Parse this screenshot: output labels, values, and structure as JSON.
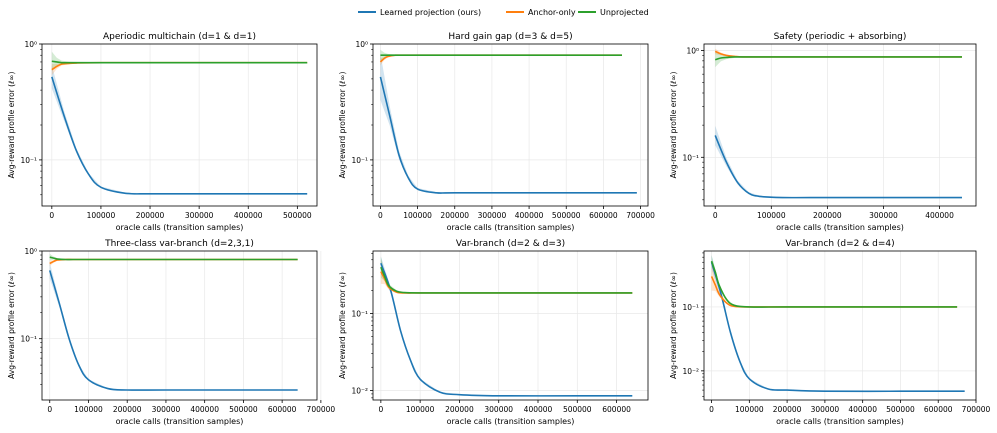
{
  "legend": {
    "placement": "top-center",
    "entries": [
      {
        "name": "Learned projection (ours)",
        "color": "#1f77b4"
      },
      {
        "name": "Anchor-only",
        "color": "#ff7f0e"
      },
      {
        "name": "Unprojected",
        "color": "#2ca02c"
      }
    ]
  },
  "chart_data": [
    {
      "type": "line",
      "title": "Aperiodic multichain (d=1 & d=1)",
      "xlabel": "oracle calls (transition samples)",
      "ylabel": "Avg-reward profile error (ℓ∞)",
      "yscale": "log",
      "xlim": [
        -20000,
        540000
      ],
      "ylim": [
        0.04,
        1.0
      ],
      "xticks": [
        0,
        100000,
        200000,
        300000,
        400000,
        500000
      ],
      "xtick_labels": [
        "0",
        "100000",
        "200000",
        "300000",
        "400000",
        "500000"
      ],
      "yticks": [
        1.0,
        0.1
      ],
      "ytick_labels": [
        "10⁰",
        "10⁻¹"
      ],
      "grid": true,
      "series": [
        {
          "name": "Learned projection (ours)",
          "color": "#1f77b4",
          "x": [
            0,
            25000,
            50000,
            75000,
            100000,
            150000,
            200000,
            300000,
            400000,
            520000
          ],
          "y": [
            0.52,
            0.24,
            0.12,
            0.075,
            0.058,
            0.0515,
            0.051,
            0.051,
            0.051,
            0.051
          ],
          "band": 0.22
        },
        {
          "name": "Anchor-only",
          "color": "#ff7f0e",
          "x": [
            0,
            10000,
            20000,
            35000,
            50000,
            100000,
            200000,
            300000,
            400000,
            520000
          ],
          "y": [
            0.6,
            0.64,
            0.67,
            0.68,
            0.685,
            0.69,
            0.69,
            0.69,
            0.69,
            0.69
          ],
          "band": 0.1
        },
        {
          "name": "Unprojected",
          "color": "#2ca02c",
          "x": [
            0,
            10000,
            20000,
            35000,
            50000,
            100000,
            200000,
            300000,
            400000,
            520000
          ],
          "y": [
            0.71,
            0.7,
            0.69,
            0.69,
            0.69,
            0.69,
            0.69,
            0.69,
            0.69,
            0.69
          ],
          "band": 0.18
        }
      ]
    },
    {
      "type": "line",
      "title": "Hard gain gap (d=3 & d=5)",
      "xlabel": "oracle calls (transition samples)",
      "ylabel": "Avg-reward profile error (ℓ∞)",
      "yscale": "log",
      "xlim": [
        -20000,
        720000
      ],
      "ylim": [
        0.04,
        1.0
      ],
      "xticks": [
        0,
        100000,
        200000,
        300000,
        400000,
        500000,
        600000,
        700000
      ],
      "xtick_labels": [
        "0",
        "100000",
        "200000",
        "300000",
        "400000",
        "500000",
        "600000",
        "700000"
      ],
      "yticks": [
        1.0,
        0.1
      ],
      "ytick_labels": [
        "10⁰",
        "10⁻¹"
      ],
      "grid": true,
      "series": [
        {
          "name": "Learned projection (ours)",
          "color": "#1f77b4",
          "x": [
            0,
            25000,
            50000,
            75000,
            100000,
            150000,
            200000,
            400000,
            600000,
            690000
          ],
          "y": [
            0.52,
            0.24,
            0.11,
            0.07,
            0.056,
            0.052,
            0.052,
            0.052,
            0.052,
            0.052
          ],
          "band": 0.45
        },
        {
          "name": "Anchor-only",
          "color": "#ff7f0e",
          "x": [
            0,
            10000,
            20000,
            40000,
            60000,
            100000,
            200000,
            400000,
            600000,
            650000
          ],
          "y": [
            0.7,
            0.75,
            0.78,
            0.8,
            0.8,
            0.8,
            0.8,
            0.8,
            0.8,
            0.8
          ],
          "band": 0.06
        },
        {
          "name": "Unprojected",
          "color": "#2ca02c",
          "x": [
            0,
            10000,
            20000,
            40000,
            60000,
            100000,
            200000,
            400000,
            600000,
            650000
          ],
          "y": [
            0.8,
            0.8,
            0.8,
            0.8,
            0.8,
            0.8,
            0.8,
            0.8,
            0.8,
            0.8
          ],
          "band": 0.1
        }
      ]
    },
    {
      "type": "line",
      "title": "Safety (periodic + absorbing)",
      "xlabel": "oracle calls (transition samples)",
      "ylabel": "Avg-reward profile error (ℓ∞)",
      "yscale": "log",
      "xlim": [
        -20000,
        465000
      ],
      "ylim": [
        0.035,
        1.15
      ],
      "xticks": [
        0,
        100000,
        200000,
        300000,
        400000
      ],
      "xtick_labels": [
        "0",
        "100000",
        "200000",
        "300000",
        "400000"
      ],
      "yticks": [
        1.0,
        0.1
      ],
      "ytick_labels": [
        "10⁰",
        "10⁻¹"
      ],
      "grid": true,
      "series": [
        {
          "name": "Learned projection (ours)",
          "color": "#1f77b4",
          "x": [
            0,
            20000,
            40000,
            60000,
            80000,
            120000,
            200000,
            300000,
            400000,
            440000
          ],
          "y": [
            0.16,
            0.09,
            0.058,
            0.046,
            0.043,
            0.042,
            0.042,
            0.042,
            0.042,
            0.042
          ],
          "band": 0.2
        },
        {
          "name": "Anchor-only",
          "color": "#ff7f0e",
          "x": [
            0,
            10000,
            20000,
            35000,
            50000,
            100000,
            200000,
            300000,
            400000,
            440000
          ],
          "y": [
            0.98,
            0.93,
            0.9,
            0.88,
            0.87,
            0.87,
            0.87,
            0.87,
            0.87,
            0.87
          ],
          "band": 0.05
        },
        {
          "name": "Unprojected",
          "color": "#2ca02c",
          "x": [
            0,
            10000,
            20000,
            35000,
            50000,
            100000,
            200000,
            300000,
            400000,
            440000
          ],
          "y": [
            0.82,
            0.85,
            0.86,
            0.87,
            0.87,
            0.87,
            0.87,
            0.87,
            0.87,
            0.87
          ],
          "band": 0.15
        }
      ]
    },
    {
      "type": "line",
      "title": "Three-class var-branch (d=2,3,1)",
      "xlabel": "oracle calls (transition samples)",
      "ylabel": "Avg-reward profile error (ℓ∞)",
      "yscale": "log",
      "xlim": [
        -20000,
        690000
      ],
      "ylim": [
        0.02,
        1.0
      ],
      "xticks": [
        0,
        100000,
        200000,
        300000,
        400000,
        500000,
        600000,
        700000
      ],
      "xtick_labels": [
        "0",
        "100000",
        "200000",
        "300000",
        "400000",
        "500000",
        "600000",
        "700000"
      ],
      "yticks": [
        1.0,
        0.1
      ],
      "ytick_labels": [
        "10⁰",
        "10⁻¹"
      ],
      "grid": true,
      "series": [
        {
          "name": "Learned projection (ours)",
          "color": "#1f77b4",
          "x": [
            0,
            25000,
            50000,
            75000,
            100000,
            150000,
            200000,
            300000,
            500000,
            640000
          ],
          "y": [
            0.6,
            0.25,
            0.1,
            0.05,
            0.034,
            0.027,
            0.026,
            0.026,
            0.026,
            0.026
          ],
          "band": 0.2
        },
        {
          "name": "Anchor-only",
          "color": "#ff7f0e",
          "x": [
            0,
            10000,
            20000,
            40000,
            60000,
            100000,
            200000,
            400000,
            600000,
            640000
          ],
          "y": [
            0.72,
            0.76,
            0.79,
            0.8,
            0.8,
            0.8,
            0.8,
            0.8,
            0.8,
            0.8
          ],
          "band": 0.06
        },
        {
          "name": "Unprojected",
          "color": "#2ca02c",
          "x": [
            0,
            10000,
            20000,
            40000,
            60000,
            100000,
            200000,
            400000,
            600000,
            640000
          ],
          "y": [
            0.85,
            0.83,
            0.81,
            0.8,
            0.8,
            0.8,
            0.8,
            0.8,
            0.8,
            0.8
          ],
          "band": 0.08
        }
      ]
    },
    {
      "type": "line",
      "title": "Var-branch (d=2 & d=3)",
      "xlabel": "oracle calls (transition samples)",
      "ylabel": "Avg-reward profile error (ℓ∞)",
      "yscale": "log",
      "xlim": [
        -20000,
        680000
      ],
      "ylim": [
        0.0075,
        0.65
      ],
      "xticks": [
        0,
        100000,
        200000,
        300000,
        400000,
        500000,
        600000
      ],
      "xtick_labels": [
        "0",
        "100000",
        "200000",
        "300000",
        "400000",
        "500000",
        "600000"
      ],
      "yticks": [
        0.1,
        0.01
      ],
      "ytick_labels": [
        "10⁻¹",
        "10⁻²"
      ],
      "grid": true,
      "series": [
        {
          "name": "Learned projection (ours)",
          "color": "#1f77b4",
          "x": [
            0,
            25000,
            50000,
            75000,
            100000,
            150000,
            200000,
            300000,
            500000,
            640000
          ],
          "y": [
            0.45,
            0.2,
            0.06,
            0.025,
            0.014,
            0.0095,
            0.0088,
            0.0085,
            0.0085,
            0.0085
          ],
          "band": 0.2
        },
        {
          "name": "Anchor-only",
          "color": "#ff7f0e",
          "x": [
            0,
            10000,
            20000,
            40000,
            60000,
            100000,
            200000,
            400000,
            600000,
            640000
          ],
          "y": [
            0.35,
            0.28,
            0.22,
            0.19,
            0.185,
            0.185,
            0.185,
            0.185,
            0.185,
            0.185
          ],
          "band": 0.35
        },
        {
          "name": "Unprojected",
          "color": "#2ca02c",
          "x": [
            0,
            10000,
            20000,
            40000,
            60000,
            100000,
            200000,
            400000,
            600000,
            640000
          ],
          "y": [
            0.4,
            0.3,
            0.23,
            0.195,
            0.187,
            0.185,
            0.185,
            0.185,
            0.185,
            0.185
          ],
          "band": 0.3
        }
      ]
    },
    {
      "type": "line",
      "title": "Var-branch (d=2 & d=4)",
      "xlabel": "oracle calls (transition samples)",
      "ylabel": "Avg-reward profile error (ℓ∞)",
      "yscale": "log",
      "xlim": [
        -20000,
        700000
      ],
      "ylim": [
        0.0035,
        0.75
      ],
      "xticks": [
        0,
        100000,
        200000,
        300000,
        400000,
        500000,
        600000,
        700000
      ],
      "xtick_labels": [
        "0",
        "100000",
        "200000",
        "300000",
        "400000",
        "500000",
        "600000",
        "700000"
      ],
      "yticks": [
        0.1,
        0.01
      ],
      "ytick_labels": [
        "10⁻¹",
        "10⁻²"
      ],
      "grid": true,
      "series": [
        {
          "name": "Learned projection (ours)",
          "color": "#1f77b4",
          "x": [
            0,
            25000,
            50000,
            75000,
            100000,
            150000,
            200000,
            300000,
            500000,
            670000
          ],
          "y": [
            0.5,
            0.16,
            0.04,
            0.014,
            0.0075,
            0.0052,
            0.005,
            0.0048,
            0.0048,
            0.0048
          ],
          "band": 0.25
        },
        {
          "name": "Anchor-only",
          "color": "#ff7f0e",
          "x": [
            0,
            10000,
            20000,
            40000,
            60000,
            100000,
            200000,
            400000,
            600000,
            650000
          ],
          "y": [
            0.3,
            0.22,
            0.16,
            0.115,
            0.102,
            0.1,
            0.1,
            0.1,
            0.1,
            0.1
          ],
          "band": 0.5
        },
        {
          "name": "Unprojected",
          "color": "#2ca02c",
          "x": [
            0,
            10000,
            20000,
            40000,
            60000,
            100000,
            200000,
            400000,
            600000,
            650000
          ],
          "y": [
            0.52,
            0.35,
            0.22,
            0.13,
            0.106,
            0.1,
            0.1,
            0.1,
            0.1,
            0.1
          ],
          "band": 0.2
        }
      ]
    }
  ]
}
